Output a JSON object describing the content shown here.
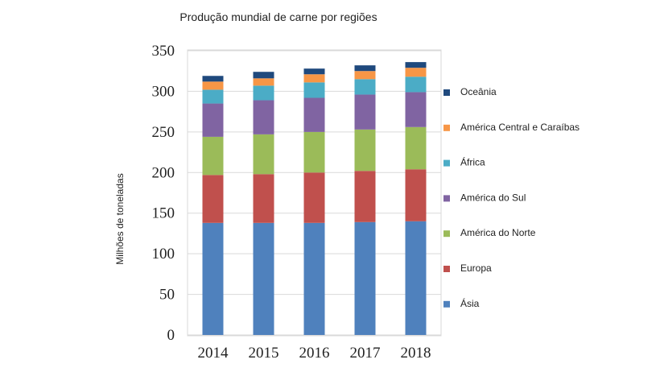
{
  "chart_data": {
    "type": "bar",
    "stacked": true,
    "title": "Produção mundial de carne por regiões",
    "xlabel": "",
    "ylabel": "Milhões de toneladas",
    "ylim": [
      0,
      350
    ],
    "yticks": [
      0,
      50,
      100,
      150,
      200,
      250,
      300,
      350
    ],
    "grid": true,
    "legend_position": "right",
    "categories": [
      "2014",
      "2015",
      "2016",
      "2017",
      "2018"
    ],
    "series": [
      {
        "name": "Ásia",
        "color": "#4F81BD",
        "values": [
          138,
          138,
          138,
          139,
          140
        ]
      },
      {
        "name": "Europa",
        "color": "#C0504D",
        "values": [
          59,
          60,
          62,
          63,
          64
        ]
      },
      {
        "name": "América do Norte",
        "color": "#9BBB59",
        "values": [
          47,
          49,
          50,
          51,
          52
        ]
      },
      {
        "name": "América do Sul",
        "color": "#8064A2",
        "values": [
          41,
          42,
          42,
          43,
          43
        ]
      },
      {
        "name": "África",
        "color": "#4BACC6",
        "values": [
          17,
          18,
          19,
          19,
          19
        ]
      },
      {
        "name": "América Central e Caraíbas",
        "color": "#F79646",
        "values": [
          10,
          9,
          10,
          10,
          11
        ]
      },
      {
        "name": "Oceânia",
        "color": "#1F497D",
        "values": [
          7,
          8,
          7,
          7,
          7
        ]
      }
    ],
    "legend_order": [
      "Oceânia",
      "América Central e Caraíbas",
      "África",
      "América do Sul",
      "América do Norte",
      "Europa",
      "Ásia"
    ]
  }
}
